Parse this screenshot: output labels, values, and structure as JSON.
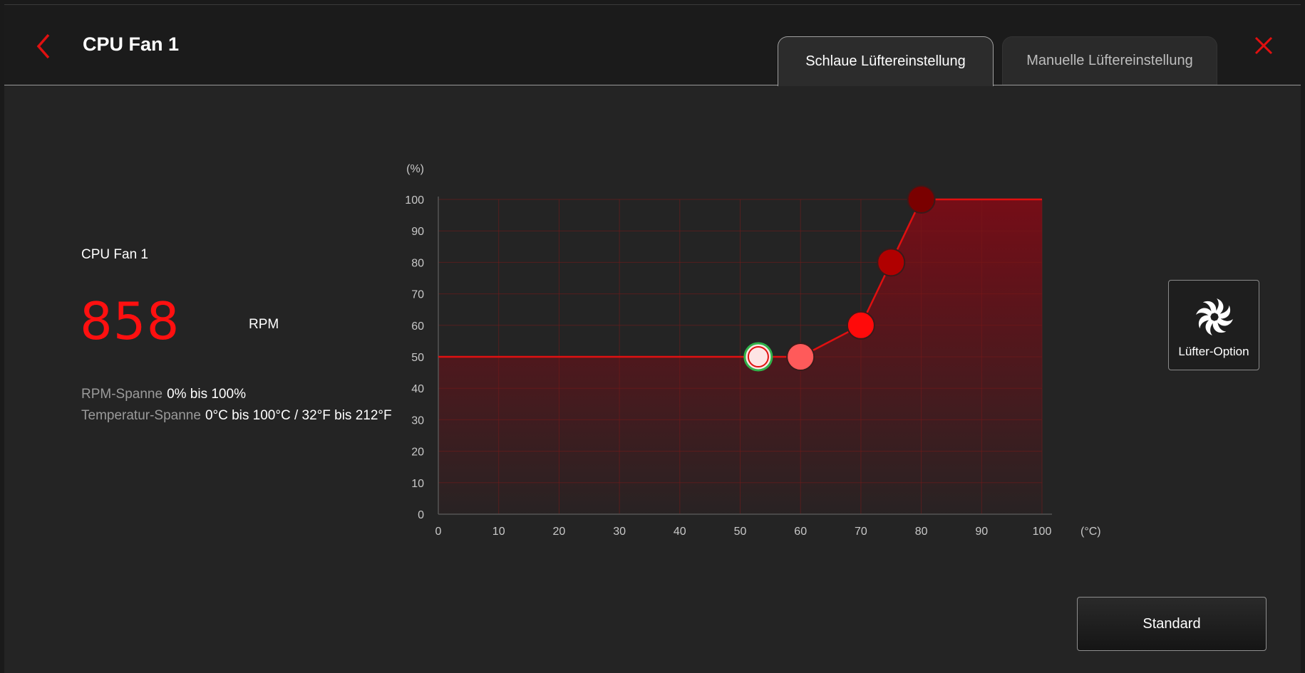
{
  "header": {
    "title": "CPU Fan 1",
    "tabs": [
      {
        "label": "Schlaue Lüftereinstellung",
        "active": true
      },
      {
        "label": "Manuelle Lüftereinstellung",
        "active": false
      }
    ]
  },
  "info": {
    "fan_name": "CPU Fan 1",
    "rpm_value": "858",
    "rpm_unit": "RPM",
    "rpm_range_label": "RPM-Spanne",
    "rpm_range_value": "0% bis 100%",
    "temp_range_label": "Temperatur-Spanne",
    "temp_range_value": "0°C bis 100°C / 32°F bis 212°F"
  },
  "buttons": {
    "fan_option": "Lüfter-Option",
    "standard": "Standard"
  },
  "icons": {
    "back": "chevron-left-icon",
    "close": "close-icon",
    "fan": "fan-icon"
  },
  "colors": {
    "accent": "#ff1010",
    "curve": "#e01010"
  },
  "chart_data": {
    "type": "line",
    "ylabel": "(%)",
    "xlabel": "(°C)",
    "xlim": [
      0,
      100
    ],
    "ylim": [
      0,
      100
    ],
    "x_ticks": [
      "0",
      "10",
      "20",
      "30",
      "40",
      "50",
      "60",
      "70",
      "80",
      "90",
      "100"
    ],
    "y_ticks": [
      "0",
      "10",
      "20",
      "30",
      "40",
      "50",
      "60",
      "70",
      "80",
      "90",
      "100"
    ],
    "grid": true,
    "curve_points": [
      {
        "x": 0,
        "y": 50
      },
      {
        "x": 60,
        "y": 50
      },
      {
        "x": 70,
        "y": 60
      },
      {
        "x": 75,
        "y": 80
      },
      {
        "x": 80,
        "y": 100
      },
      {
        "x": 100,
        "y": 100
      }
    ],
    "control_points": [
      {
        "x": 60,
        "y": 50,
        "color": "#ff5a5a"
      },
      {
        "x": 70,
        "y": 60,
        "color": "#ff0a0a"
      },
      {
        "x": 75,
        "y": 80,
        "color": "#b00000"
      },
      {
        "x": 80,
        "y": 100,
        "color": "#7a0000"
      }
    ],
    "current_point": {
      "x": 53,
      "y": 50
    }
  }
}
